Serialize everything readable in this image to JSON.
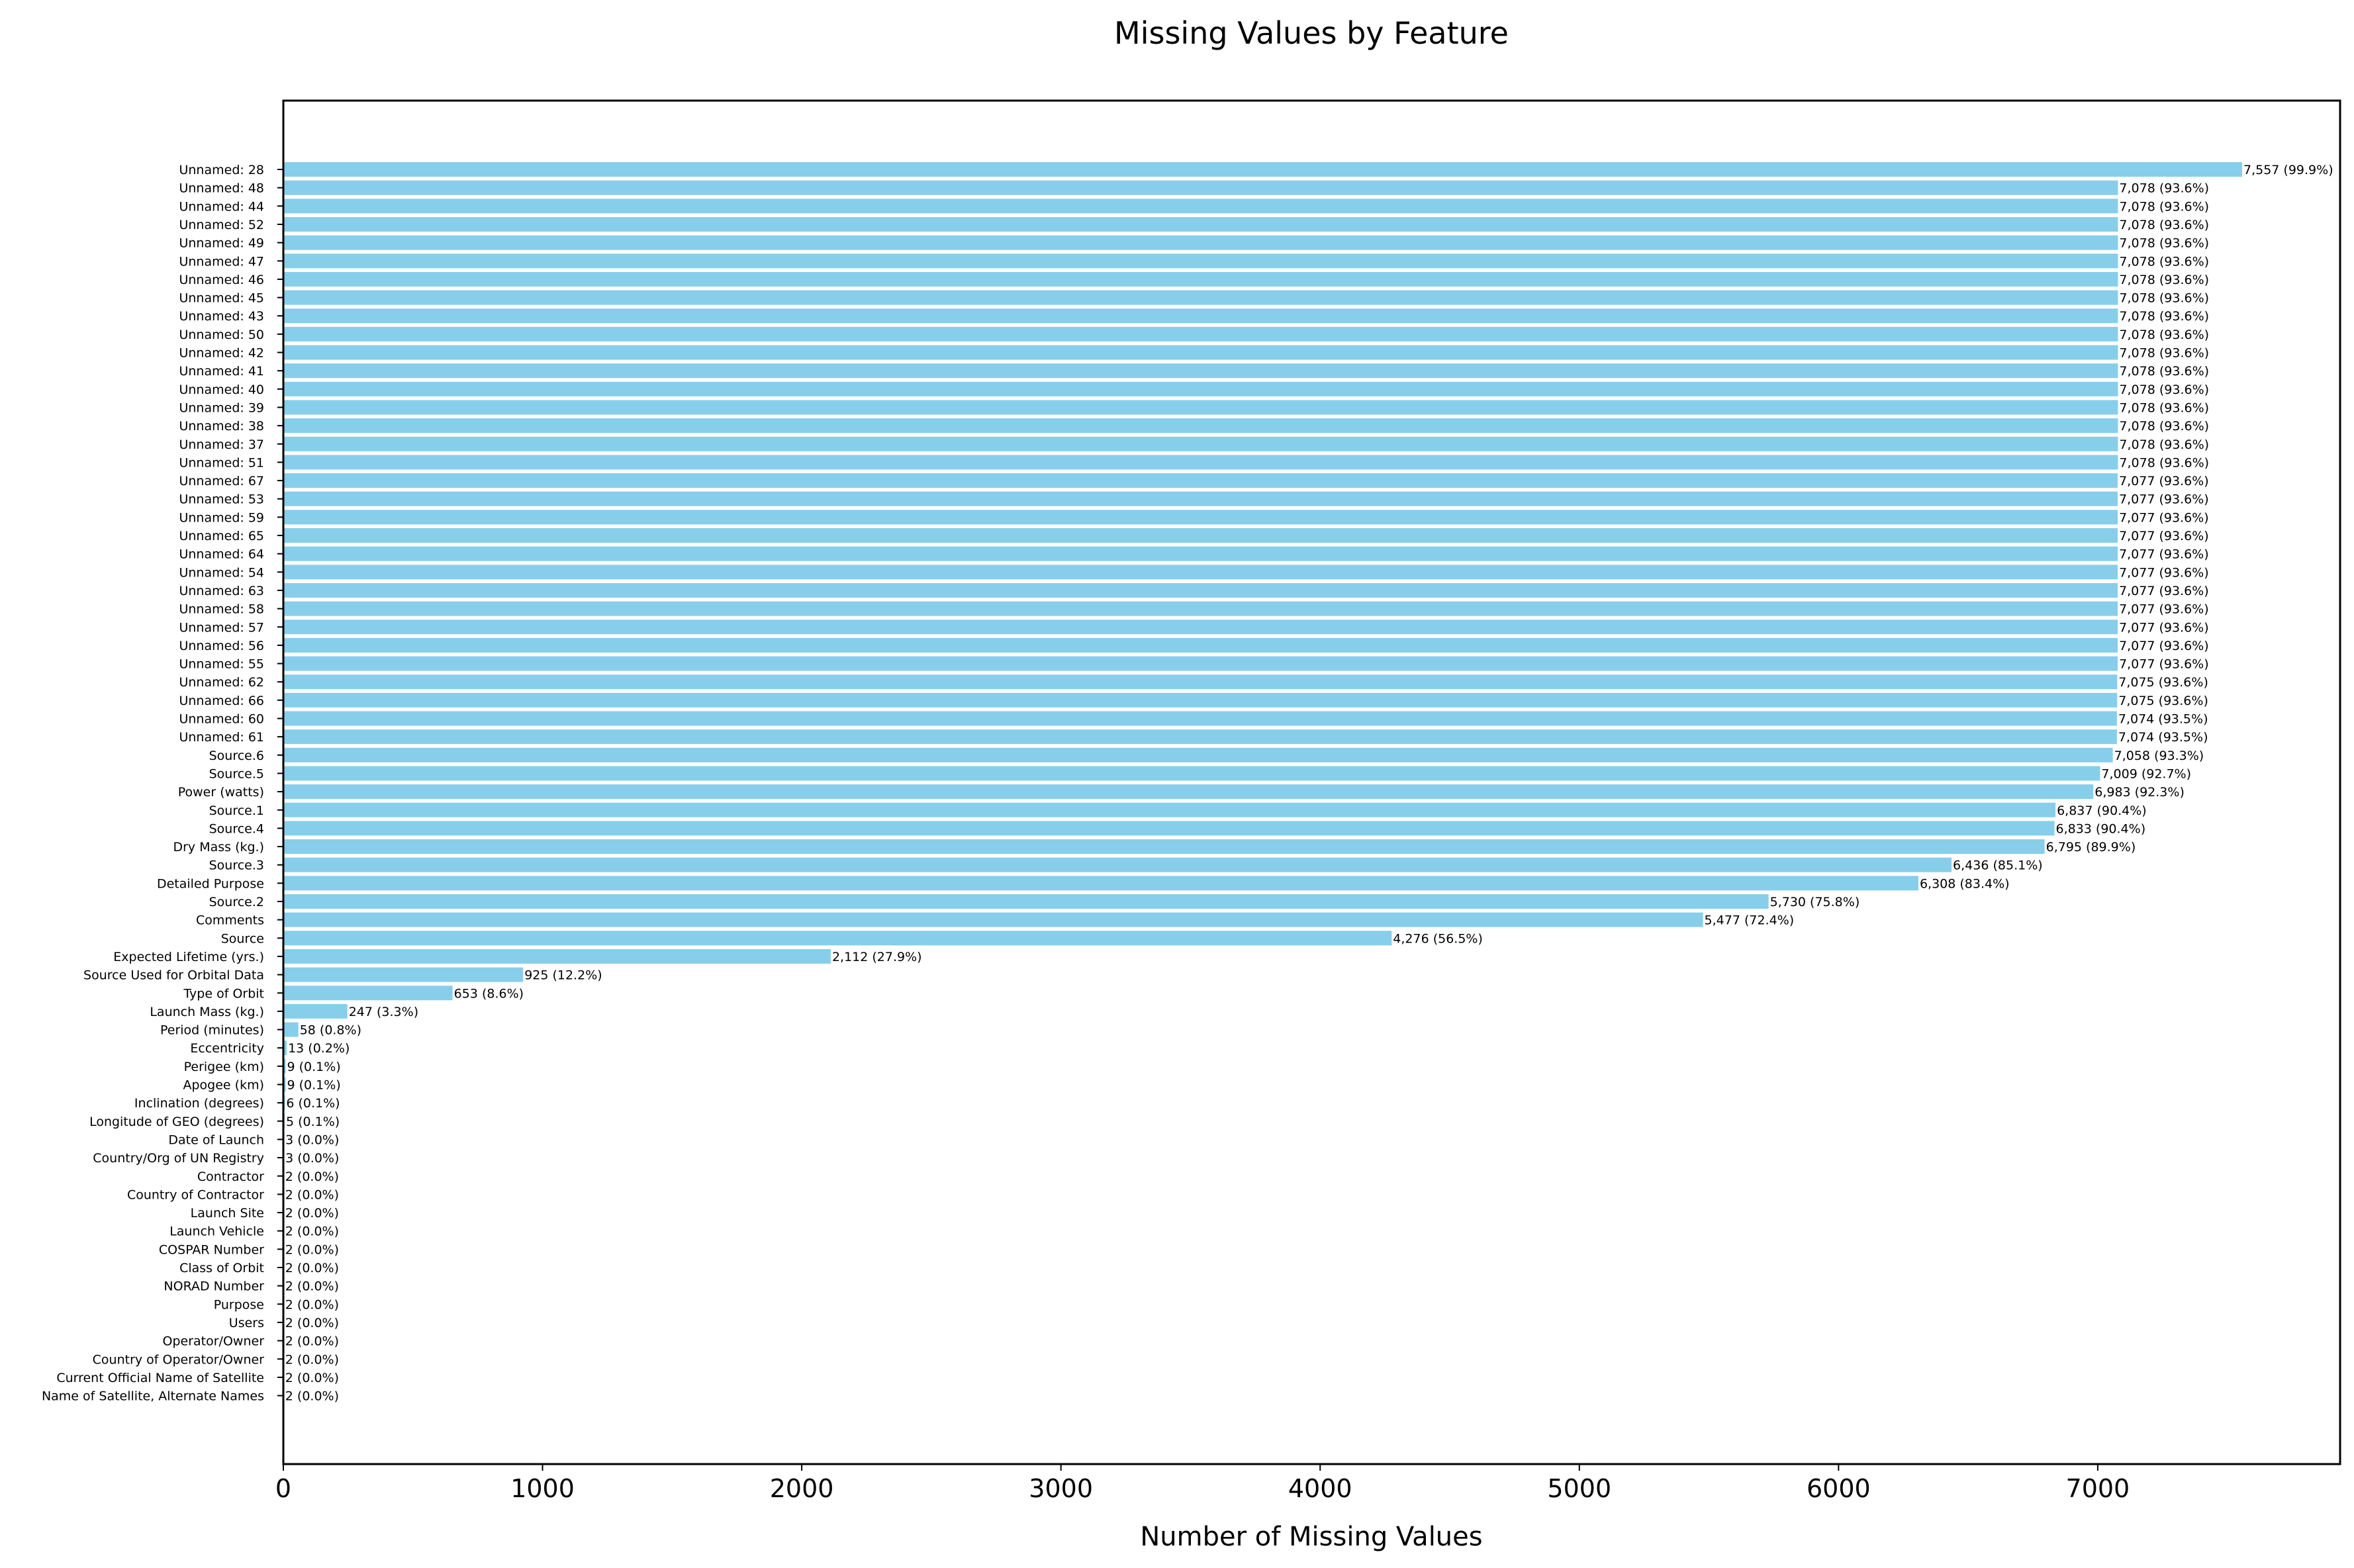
{
  "chart_data": {
    "type": "bar",
    "orientation": "horizontal",
    "title": "Missing Values by Feature",
    "xlabel": "Number of Missing Values",
    "ylabel": "",
    "xlim": [
      0,
      7935
    ],
    "xticks": [
      0,
      1000,
      2000,
      3000,
      4000,
      5000,
      6000,
      7000
    ],
    "grid": false,
    "bar_color": "#87ceeb",
    "categories": [
      "Unnamed: 28",
      "Unnamed: 48",
      "Unnamed: 44",
      "Unnamed: 52",
      "Unnamed: 49",
      "Unnamed: 47",
      "Unnamed: 46",
      "Unnamed: 45",
      "Unnamed: 43",
      "Unnamed: 50",
      "Unnamed: 42",
      "Unnamed: 41",
      "Unnamed: 40",
      "Unnamed: 39",
      "Unnamed: 38",
      "Unnamed: 37",
      "Unnamed: 51",
      "Unnamed: 67",
      "Unnamed: 53",
      "Unnamed: 59",
      "Unnamed: 65",
      "Unnamed: 64",
      "Unnamed: 54",
      "Unnamed: 63",
      "Unnamed: 58",
      "Unnamed: 57",
      "Unnamed: 56",
      "Unnamed: 55",
      "Unnamed: 62",
      "Unnamed: 66",
      "Unnamed: 60",
      "Unnamed: 61",
      "Source.6",
      "Source.5",
      "Power (watts)",
      "Source.1",
      "Source.4",
      "Dry Mass (kg.) ",
      "Source.3",
      "Detailed Purpose",
      "Source.2",
      "Comments",
      "Source",
      "Expected Lifetime (yrs.)",
      "Source Used for Orbital Data",
      "Type of Orbit",
      "Launch Mass (kg.)",
      "Period (minutes)",
      "Eccentricity",
      "Perigee (km)",
      "Apogee (km)",
      "Inclination (degrees)",
      "Longitude of GEO (degrees)",
      "Date of Launch",
      "Country/Org of UN Registry",
      "Contractor",
      "Country of Contractor",
      "Launch Site",
      "Launch Vehicle",
      "COSPAR Number",
      "Class of Orbit",
      "NORAD Number",
      "Purpose",
      "Users",
      "Operator/Owner",
      "Country of Operator/Owner",
      "Current Official Name of Satellite",
      "Name of Satellite, Alternate Names"
    ],
    "values": [
      7557,
      7078,
      7078,
      7078,
      7078,
      7078,
      7078,
      7078,
      7078,
      7078,
      7078,
      7078,
      7078,
      7078,
      7078,
      7078,
      7078,
      7077,
      7077,
      7077,
      7077,
      7077,
      7077,
      7077,
      7077,
      7077,
      7077,
      7077,
      7075,
      7075,
      7074,
      7074,
      7058,
      7009,
      6983,
      6837,
      6833,
      6795,
      6436,
      6308,
      5730,
      5477,
      4276,
      2112,
      925,
      653,
      247,
      58,
      13,
      9,
      9,
      6,
      5,
      3,
      3,
      2,
      2,
      2,
      2,
      2,
      2,
      2,
      2,
      2,
      2,
      2,
      2,
      2
    ],
    "data_labels": [
      "7,557 (99.9%)",
      "7,078 (93.6%)",
      "7,078 (93.6%)",
      "7,078 (93.6%)",
      "7,078 (93.6%)",
      "7,078 (93.6%)",
      "7,078 (93.6%)",
      "7,078 (93.6%)",
      "7,078 (93.6%)",
      "7,078 (93.6%)",
      "7,078 (93.6%)",
      "7,078 (93.6%)",
      "7,078 (93.6%)",
      "7,078 (93.6%)",
      "7,078 (93.6%)",
      "7,078 (93.6%)",
      "7,078 (93.6%)",
      "7,077 (93.6%)",
      "7,077 (93.6%)",
      "7,077 (93.6%)",
      "7,077 (93.6%)",
      "7,077 (93.6%)",
      "7,077 (93.6%)",
      "7,077 (93.6%)",
      "7,077 (93.6%)",
      "7,077 (93.6%)",
      "7,077 (93.6%)",
      "7,077 (93.6%)",
      "7,075 (93.6%)",
      "7,075 (93.6%)",
      "7,074 (93.5%)",
      "7,074 (93.5%)",
      "7,058 (93.3%)",
      "7,009 (92.7%)",
      "6,983 (92.3%)",
      "6,837 (90.4%)",
      "6,833 (90.4%)",
      "6,795 (89.9%)",
      "6,436 (85.1%)",
      "6,308 (83.4%)",
      "5,730 (75.8%)",
      "5,477 (72.4%)",
      "4,276 (56.5%)",
      "2,112 (27.9%)",
      "925 (12.2%)",
      "653 (8.6%)",
      "247 (3.3%)",
      "58 (0.8%)",
      "13 (0.2%)",
      "9 (0.1%)",
      "9 (0.1%)",
      "6 (0.1%)",
      "5 (0.1%)",
      "3 (0.0%)",
      "3 (0.0%)",
      "2 (0.0%)",
      "2 (0.0%)",
      "2 (0.0%)",
      "2 (0.0%)",
      "2 (0.0%)",
      "2 (0.0%)",
      "2 (0.0%)",
      "2 (0.0%)",
      "2 (0.0%)",
      "2 (0.0%)",
      "2 (0.0%)",
      "2 (0.0%)",
      "2 (0.0%)"
    ]
  }
}
